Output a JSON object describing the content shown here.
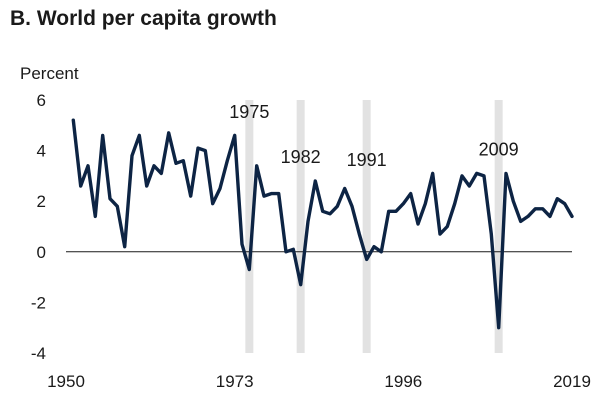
{
  "chart_data": {
    "type": "line",
    "title": "B. World per capita growth",
    "ylabel": "Percent",
    "xlabel": "",
    "xlim": [
      1950,
      2019
    ],
    "ylim": [
      -4,
      6
    ],
    "x_ticks": [
      1950,
      1973,
      1996,
      2019
    ],
    "y_ticks": [
      -4,
      -2,
      0,
      2,
      4,
      6
    ],
    "grid": false,
    "zero_line": true,
    "recession_years": [
      1975,
      1982,
      1991,
      2009
    ],
    "annotations": [
      "1975",
      "1982",
      "1991",
      "2009"
    ],
    "colors": {
      "line": "#0d2444",
      "recession_band": "#e2e2e2",
      "zero_line": "#1a1a1a"
    },
    "series": [
      {
        "x": [
          1951,
          1952,
          1953,
          1954,
          1955,
          1956,
          1957,
          1958,
          1959,
          1960,
          1961,
          1962,
          1963,
          1964,
          1965,
          1966,
          1967,
          1968,
          1969,
          1970,
          1971,
          1972,
          1973,
          1974,
          1975,
          1976,
          1977,
          1978,
          1979,
          1980,
          1981,
          1982,
          1983,
          1984,
          1985,
          1986,
          1987,
          1988,
          1989,
          1990,
          1991,
          1992,
          1993,
          1994,
          1995,
          1996,
          1997,
          1998,
          1999,
          2000,
          2001,
          2002,
          2003,
          2004,
          2005,
          2006,
          2007,
          2008,
          2009,
          2010,
          2011,
          2012,
          2013,
          2014,
          2015,
          2016,
          2017,
          2018,
          2019
        ],
        "values": [
          5.2,
          2.6,
          3.4,
          1.4,
          4.6,
          2.1,
          1.8,
          0.2,
          3.8,
          4.6,
          2.6,
          3.4,
          3.1,
          4.7,
          3.5,
          3.6,
          2.2,
          4.1,
          4.0,
          1.9,
          2.5,
          3.6,
          4.6,
          0.3,
          -0.7,
          3.4,
          2.2,
          2.3,
          2.3,
          0.0,
          0.1,
          -1.3,
          1.2,
          2.8,
          1.6,
          1.5,
          1.8,
          2.5,
          1.8,
          0.7,
          -0.3,
          0.2,
          0.0,
          1.6,
          1.6,
          1.9,
          2.3,
          1.1,
          1.9,
          3.1,
          0.7,
          1.0,
          1.9,
          3.0,
          2.6,
          3.1,
          3.0,
          0.7,
          -3.0,
          3.1,
          2.0,
          1.2,
          1.4,
          1.7,
          1.7,
          1.4,
          2.1,
          1.9,
          1.4
        ]
      }
    ]
  }
}
